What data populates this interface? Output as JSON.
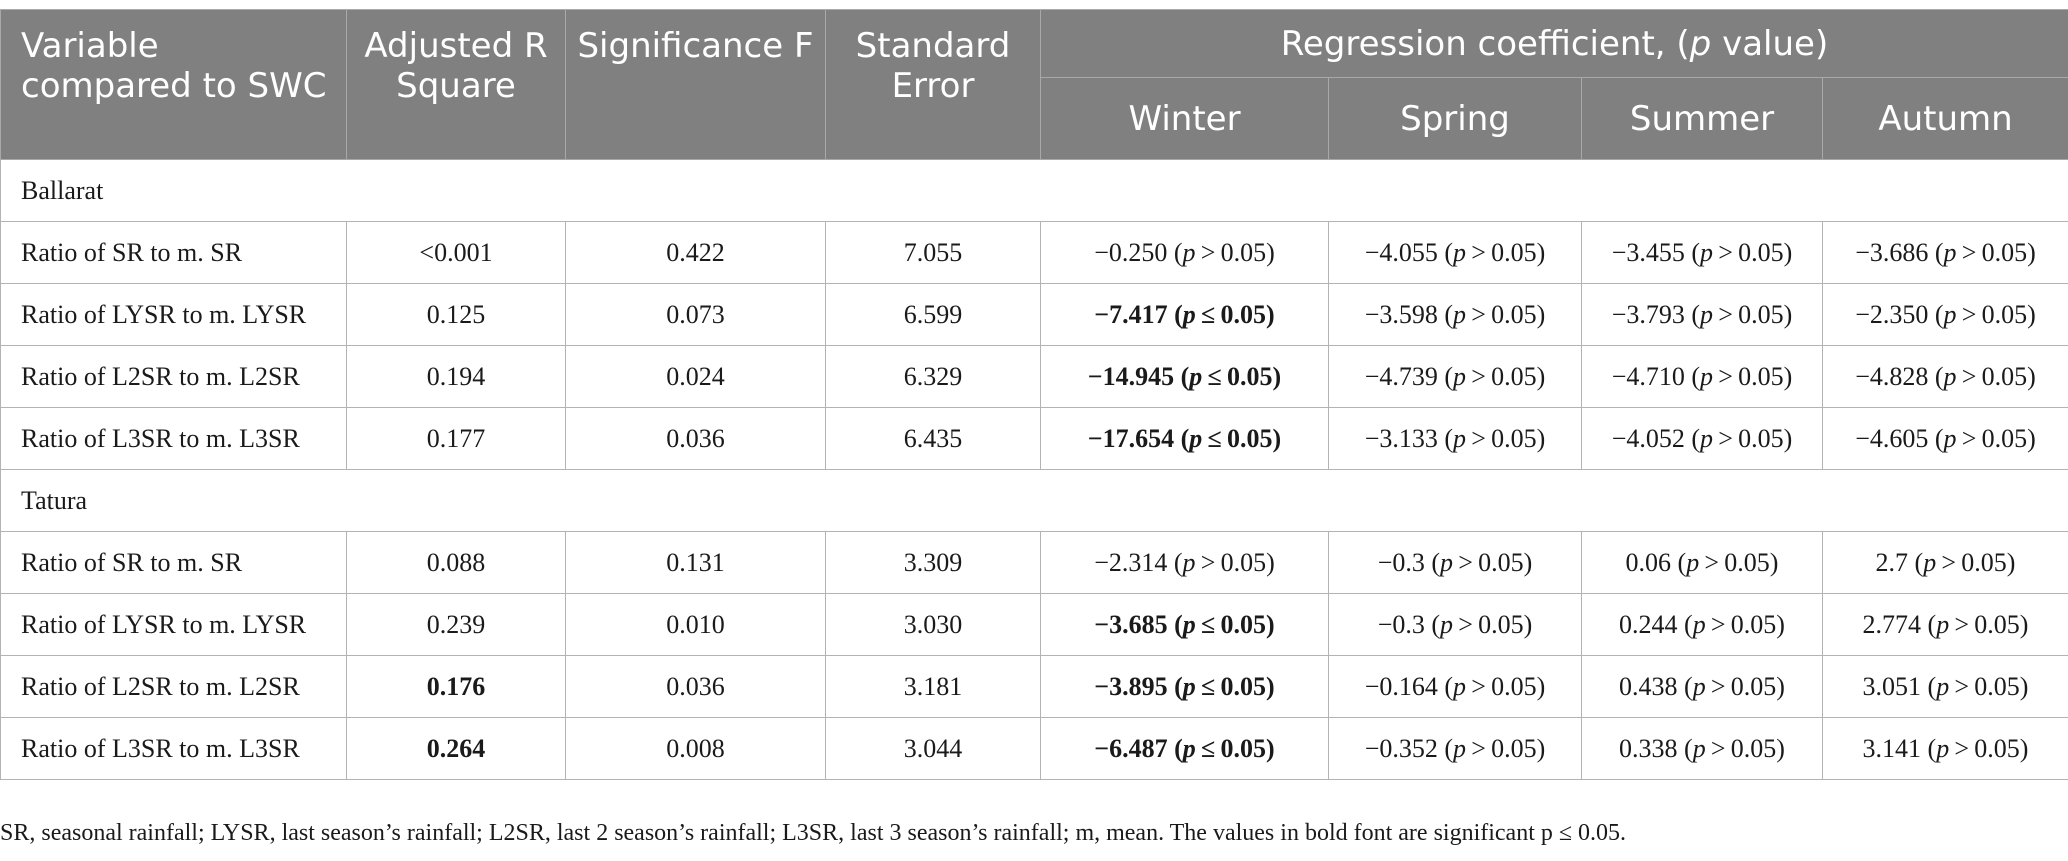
{
  "header": {
    "variable": "Variable compared to SWC",
    "adj_r2": "Adjusted R Square",
    "sig_f": "Significance F",
    "std_err": "Standard Error",
    "coef_group_pre": "Regression coefficient, (",
    "coef_group_p": "p",
    "coef_group_post": " value)",
    "seasons": [
      "Winter",
      "Spring",
      "Summer",
      "Autumn"
    ]
  },
  "sections": [
    {
      "name": "Ballarat",
      "rows": [
        {
          "label": "Ratio of SR to m. SR",
          "adj_r2": "<0.001",
          "adj_r2_bold": false,
          "sig_f": "0.422",
          "std_err": "7.055",
          "coef": [
            {
              "v": "−0.250",
              "rel": ">",
              "bold": false
            },
            {
              "v": "−4.055",
              "rel": ">",
              "bold": false
            },
            {
              "v": "−3.455",
              "rel": ">",
              "bold": false
            },
            {
              "v": "−3.686",
              "rel": ">",
              "bold": false
            }
          ]
        },
        {
          "label": "Ratio of LYSR to m. LYSR",
          "adj_r2": "0.125",
          "adj_r2_bold": false,
          "sig_f": "0.073",
          "std_err": "6.599",
          "coef": [
            {
              "v": "−7.417",
              "rel": "≤",
              "bold": true
            },
            {
              "v": "−3.598",
              "rel": ">",
              "bold": false
            },
            {
              "v": "−3.793",
              "rel": ">",
              "bold": false
            },
            {
              "v": "−2.350",
              "rel": ">",
              "bold": false
            }
          ]
        },
        {
          "label": "Ratio of L2SR to m. L2SR",
          "adj_r2": "0.194",
          "adj_r2_bold": false,
          "sig_f": "0.024",
          "std_err": "6.329",
          "coef": [
            {
              "v": "−14.945",
              "rel": "≤",
              "bold": true
            },
            {
              "v": "−4.739",
              "rel": ">",
              "bold": false
            },
            {
              "v": "−4.710",
              "rel": ">",
              "bold": false
            },
            {
              "v": "−4.828",
              "rel": ">",
              "bold": false
            }
          ]
        },
        {
          "label": "Ratio of L3SR to m. L3SR",
          "adj_r2": "0.177",
          "adj_r2_bold": false,
          "sig_f": "0.036",
          "std_err": "6.435",
          "coef": [
            {
              "v": "−17.654",
              "rel": "≤",
              "bold": true
            },
            {
              "v": "−3.133",
              "rel": ">",
              "bold": false
            },
            {
              "v": "−4.052",
              "rel": ">",
              "bold": false
            },
            {
              "v": "−4.605",
              "rel": ">",
              "bold": false
            }
          ]
        }
      ]
    },
    {
      "name": "Tatura",
      "rows": [
        {
          "label": "Ratio of SR to m. SR",
          "adj_r2": "0.088",
          "adj_r2_bold": false,
          "sig_f": "0.131",
          "std_err": "3.309",
          "coef": [
            {
              "v": "−2.314",
              "rel": ">",
              "bold": false
            },
            {
              "v": "−0.3",
              "rel": ">",
              "bold": false
            },
            {
              "v": "0.06",
              "rel": ">",
              "bold": false
            },
            {
              "v": "2.7",
              "rel": ">",
              "bold": false
            }
          ]
        },
        {
          "label": "Ratio of LYSR to m. LYSR",
          "adj_r2": "0.239",
          "adj_r2_bold": false,
          "sig_f": "0.010",
          "std_err": "3.030",
          "coef": [
            {
              "v": "−3.685",
              "rel": "≤",
              "bold": true
            },
            {
              "v": "−0.3",
              "rel": ">",
              "bold": false
            },
            {
              "v": "0.244",
              "rel": ">",
              "bold": false
            },
            {
              "v": "2.774",
              "rel": ">",
              "bold": false
            }
          ]
        },
        {
          "label": "Ratio of L2SR to m. L2SR",
          "adj_r2": "0.176",
          "adj_r2_bold": true,
          "sig_f": "0.036",
          "std_err": "3.181",
          "coef": [
            {
              "v": "−3.895",
              "rel": "≤",
              "bold": true
            },
            {
              "v": "−0.164",
              "rel": ">",
              "bold": false
            },
            {
              "v": "0.438",
              "rel": ">",
              "bold": false
            },
            {
              "v": "3.051",
              "rel": ">",
              "bold": false
            }
          ]
        },
        {
          "label": "Ratio of L3SR to m. L3SR",
          "adj_r2": "0.264",
          "adj_r2_bold": true,
          "sig_f": "0.008",
          "std_err": "3.044",
          "coef": [
            {
              "v": "−6.487",
              "rel": "≤",
              "bold": true
            },
            {
              "v": "−0.352",
              "rel": ">",
              "bold": false
            },
            {
              "v": "0.338",
              "rel": ">",
              "bold": false
            },
            {
              "v": "3.141",
              "rel": ">",
              "bold": false
            }
          ]
        }
      ]
    }
  ],
  "footnote": "SR, seasonal rainfall; LYSR, last season’s rainfall; L2SR, last 2 season’s rainfall; L3SR, last 3 season’s rainfall; m, mean. The values in bold font are significant p ≤ 0.05.",
  "colors": {
    "header_bg": "#808080",
    "header_text": "#ffffff",
    "border": "#b3b3b3"
  }
}
